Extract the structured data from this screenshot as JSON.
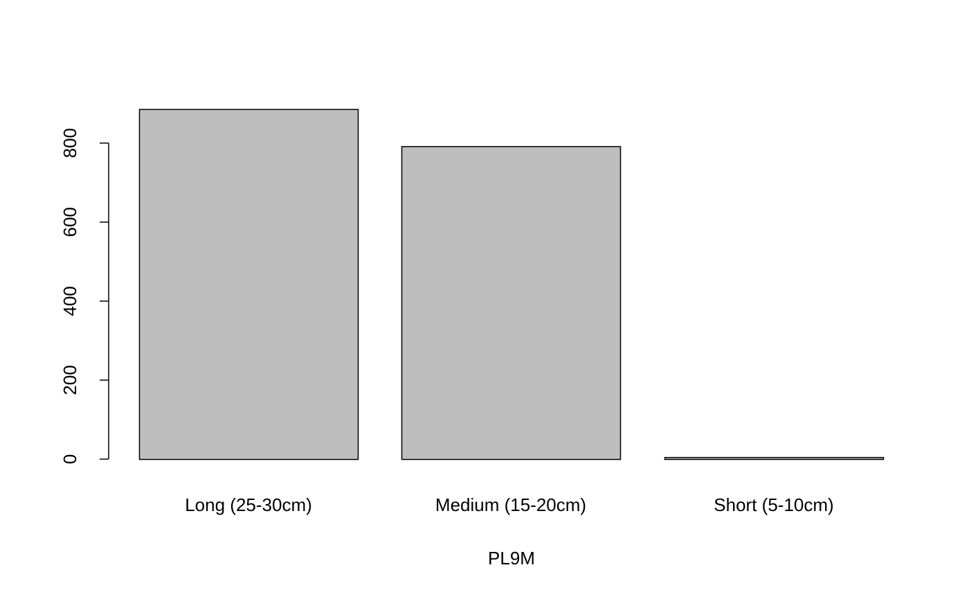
{
  "chart_data": {
    "type": "bar",
    "categories": [
      "Long (25-30cm)",
      "Medium (15-20cm)",
      "Short (5-10cm)"
    ],
    "values": [
      886,
      792,
      5
    ],
    "xlabel": "PL9M",
    "ylabel": "",
    "ylim": [
      0,
      886
    ],
    "yticks": [
      0,
      200,
      400,
      600,
      800
    ],
    "ytick_labels": [
      "0",
      "200",
      "400",
      "600",
      "800"
    ],
    "grid": false,
    "bar_fill": "#bebebe",
    "bar_stroke": "#000000"
  }
}
